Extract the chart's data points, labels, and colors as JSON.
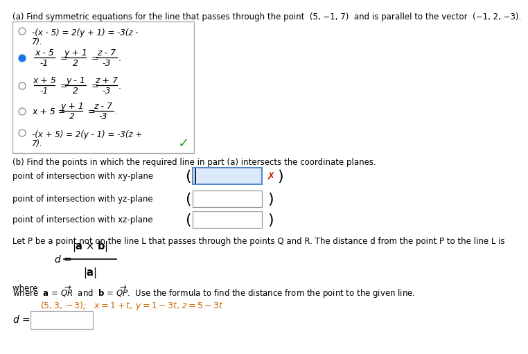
{
  "bg_color": "#ffffff",
  "title_a": "(a) Find symmetric equations for the line that passes through the point  (5, −1, 7)  and is parallel to the vector  (−1, 2, −3).",
  "option0_line1": "-(x - 5) = 2(y + 1) = -3(z -",
  "option0_line2": "7).",
  "option1_frac1_num": "x - 5",
  "option1_frac1_den": "-1",
  "option1_frac2_num": "y + 1",
  "option1_frac2_den": "2",
  "option1_frac3_num": "z - 7",
  "option1_frac3_den": "-3",
  "option2_frac1_num": "x + 5",
  "option2_frac1_den": "-1",
  "option2_frac2_num": "y - 1",
  "option2_frac2_den": "2",
  "option2_frac3_num": "z + 7",
  "option2_frac3_den": "-3",
  "option3_prefix": "x + 5 =",
  "option3_frac2_num": "y + 1",
  "option3_frac2_den": "2",
  "option3_frac3_num": "z - 7",
  "option3_frac3_den": "-3",
  "option4_line1": "-(x + 5) = 2(y - 1) = -3(z +",
  "option4_line2": "7).",
  "checkmark": "✓",
  "title_b": "(b) Find the points in which the required line in part (a) intersects the coordinate planes.",
  "label_xy": "point of intersection with xy-plane",
  "label_yz": "point of intersection with yz-plane",
  "label_xz": "point of intersection with xz-plane",
  "distance_text": "Let P be a point not on the line L that passes through the points Q and R. The distance d from the point P to the line L is",
  "given_line": "(5, 3, −3);   x = 1 + t, y = 1 − 3t, z = 5 − 3t",
  "orange_color": "#cc6600",
  "green_color": "#22aa22",
  "blue_color": "#1a73e8",
  "red_color": "#cc2200",
  "gray_color": "#888888",
  "box_border": "#aaaaaa",
  "input_border_blue": "#5588cc",
  "input_border_gray": "#999999"
}
